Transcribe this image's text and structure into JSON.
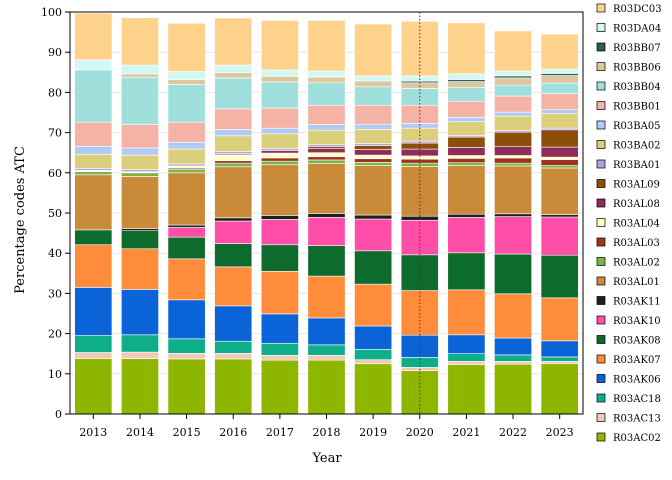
{
  "chart_data": {
    "type": "bar",
    "stacked": true,
    "xlabel": "Year",
    "ylabel": "Percentage codes ATC",
    "ylim": [
      0,
      100
    ],
    "yticks": [
      0,
      10,
      20,
      30,
      40,
      50,
      60,
      70,
      80,
      90,
      100
    ],
    "categories": [
      "2013",
      "2014",
      "2015",
      "2016",
      "2017",
      "2018",
      "2019",
      "2020",
      "2021",
      "2022",
      "2023"
    ],
    "reference_line": {
      "category": "2020",
      "color": "#7f1d1d",
      "style": "dotted"
    },
    "legend_position": "right",
    "series": [
      {
        "name": "R03AC02",
        "color": "#8db600",
        "values": [
          13.8,
          13.8,
          13.7,
          13.7,
          13.4,
          13.4,
          12.5,
          10.8,
          12.3,
          12.4,
          12.5
        ]
      },
      {
        "name": "R03AC13",
        "color": "#f2c9b5",
        "values": [
          1.5,
          1.6,
          1.4,
          1.4,
          1.2,
          1.2,
          1.0,
          0.8,
          0.8,
          0.7,
          0.6
        ]
      },
      {
        "name": "R03AC18",
        "color": "#0fae8b",
        "values": [
          4.2,
          4.3,
          3.6,
          3.0,
          3.0,
          2.6,
          2.6,
          2.5,
          1.9,
          1.6,
          1.1
        ]
      },
      {
        "name": "R03AK06",
        "color": "#0a64d8",
        "values": [
          12.0,
          11.3,
          9.7,
          8.8,
          7.3,
          6.7,
          5.8,
          5.5,
          4.7,
          4.2,
          4.0
        ]
      },
      {
        "name": "R03AK07",
        "color": "#ff8c3a",
        "values": [
          10.6,
          10.1,
          10.2,
          9.7,
          10.6,
          10.4,
          10.4,
          11.1,
          11.2,
          11.0,
          10.7
        ]
      },
      {
        "name": "R03AK08",
        "color": "#0e6b2e",
        "values": [
          3.7,
          4.5,
          5.4,
          5.8,
          6.6,
          7.6,
          8.3,
          8.9,
          9.2,
          9.9,
          10.6
        ]
      },
      {
        "name": "R03AK10",
        "color": "#ff4ea8",
        "values": [
          0.0,
          0.0,
          2.4,
          5.6,
          6.3,
          7.0,
          7.9,
          8.6,
          8.8,
          9.3,
          9.5
        ]
      },
      {
        "name": "R03AK11",
        "color": "#1f1f1f",
        "values": [
          0.0,
          0.5,
          0.6,
          0.8,
          1.0,
          1.0,
          1.0,
          1.0,
          0.8,
          0.7,
          0.6
        ]
      },
      {
        "name": "R03AL01",
        "color": "#c98a3a",
        "values": [
          13.7,
          13.0,
          13.0,
          12.7,
          12.6,
          12.4,
          12.3,
          12.4,
          12.1,
          11.9,
          11.6
        ]
      },
      {
        "name": "R03AL02",
        "color": "#7db44a",
        "values": [
          0.8,
          0.9,
          0.9,
          0.9,
          0.9,
          0.9,
          0.8,
          0.8,
          0.7,
          0.7,
          0.6
        ]
      },
      {
        "name": "R03AL03",
        "color": "#a0321e",
        "values": [
          0.0,
          0.0,
          0.3,
          0.6,
          0.8,
          0.8,
          0.9,
          1.0,
          1.1,
          1.3,
          1.5
        ]
      },
      {
        "name": "R03AL04",
        "color": "#ffffc8",
        "values": [
          0.3,
          0.3,
          0.5,
          1.5,
          1.2,
          1.0,
          0.9,
          0.8,
          0.7,
          0.6,
          0.6
        ]
      },
      {
        "name": "R03AL08",
        "color": "#8e2d5a",
        "values": [
          0.0,
          0.0,
          0.0,
          0.3,
          0.6,
          1.0,
          1.4,
          1.7,
          2.0,
          2.2,
          2.5
        ]
      },
      {
        "name": "R03AL09",
        "color": "#8c4f0a",
        "values": [
          0.0,
          0.0,
          0.0,
          0.0,
          0.0,
          0.5,
          1.0,
          1.5,
          2.6,
          3.6,
          4.3
        ]
      },
      {
        "name": "R03BA01",
        "color": "#b0a0e6",
        "values": [
          0.5,
          0.5,
          0.5,
          0.5,
          0.5,
          0.5,
          0.5,
          0.5,
          0.4,
          0.4,
          0.4
        ]
      },
      {
        "name": "R03BA02",
        "color": "#dccf7c",
        "values": [
          3.5,
          3.6,
          3.7,
          3.9,
          3.7,
          3.6,
          3.5,
          3.2,
          3.4,
          3.6,
          3.6
        ]
      },
      {
        "name": "R03BA05",
        "color": "#b2cbf2",
        "values": [
          2.0,
          1.8,
          1.7,
          1.6,
          1.4,
          1.4,
          1.3,
          1.2,
          1.1,
          1.0,
          1.0
        ]
      },
      {
        "name": "R03BB01",
        "color": "#f5b3a6",
        "values": [
          6.0,
          5.8,
          5.0,
          5.1,
          5.0,
          4.8,
          4.7,
          4.5,
          4.0,
          4.0,
          4.0
        ]
      },
      {
        "name": "R03BB04",
        "color": "#9fe0dc",
        "values": [
          13.0,
          11.8,
          9.4,
          7.7,
          6.5,
          5.6,
          4.6,
          4.2,
          3.4,
          2.7,
          2.6
        ]
      },
      {
        "name": "R03BB06",
        "color": "#dcc8a0",
        "values": [
          0.0,
          0.8,
          1.2,
          1.3,
          1.4,
          1.4,
          1.3,
          1.4,
          1.5,
          1.8,
          1.9
        ]
      },
      {
        "name": "R03BB07",
        "color": "#2e5e4e",
        "values": [
          0.0,
          0.0,
          0.0,
          0.0,
          0.0,
          0.1,
          0.2,
          0.4,
          0.5,
          0.5,
          0.5
        ]
      },
      {
        "name": "R03DA04",
        "color": "#d2f8f4",
        "values": [
          2.5,
          2.2,
          2.0,
          1.9,
          1.6,
          1.4,
          1.2,
          1.3,
          1.4,
          1.2,
          1.1
        ]
      },
      {
        "name": "R03DC03",
        "color": "#ffd28c",
        "values": [
          11.6,
          11.8,
          12.0,
          11.7,
          12.3,
          12.6,
          12.9,
          13.6,
          12.7,
          10.0,
          8.7
        ]
      }
    ]
  }
}
